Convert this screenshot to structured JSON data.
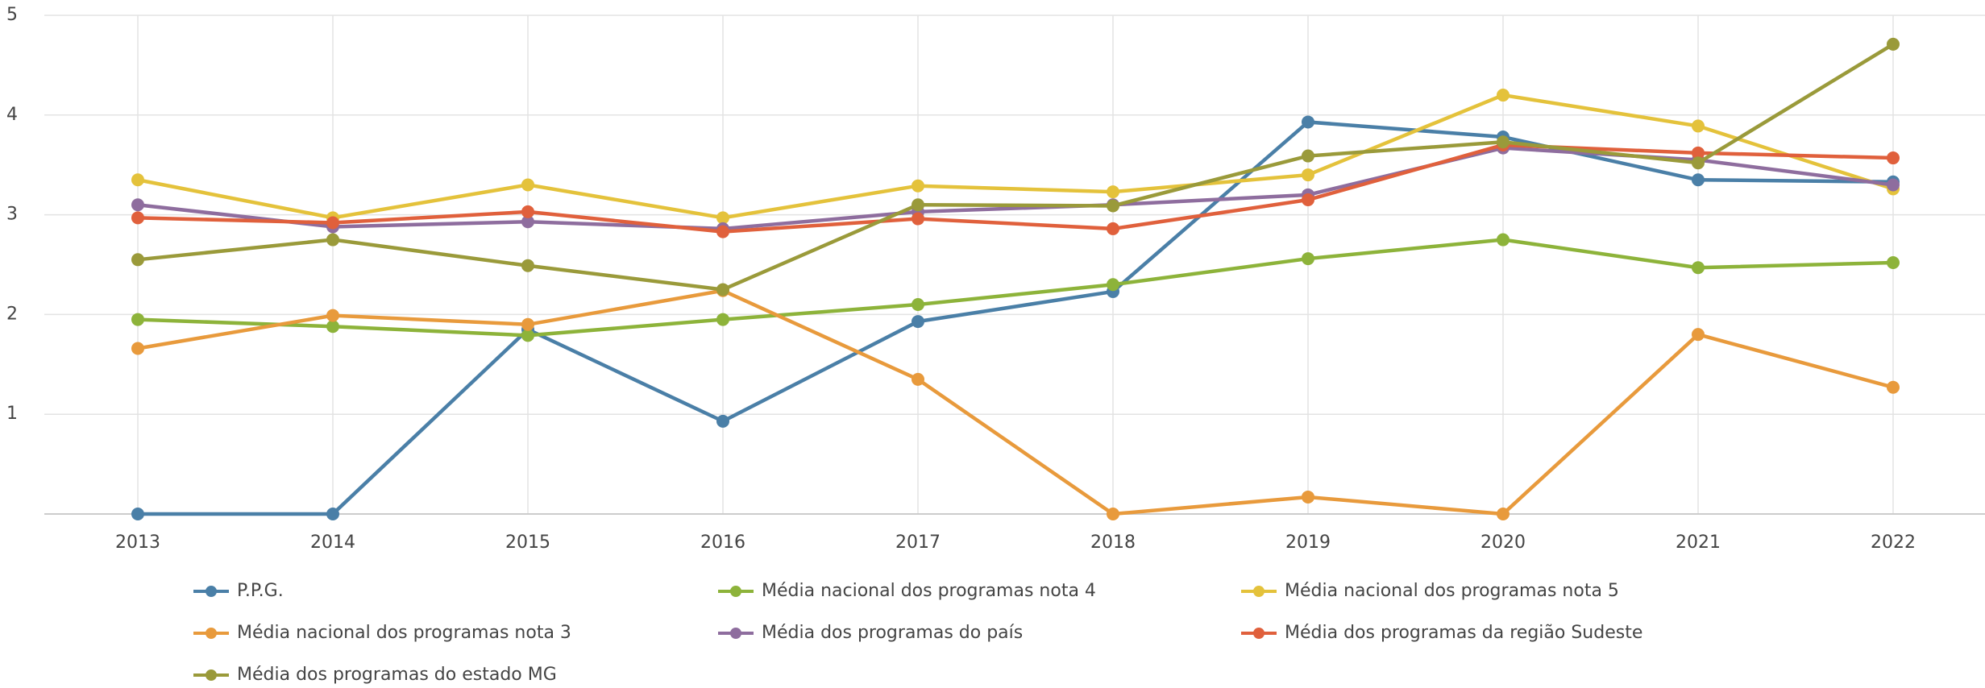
{
  "chart_data": {
    "type": "line",
    "categories": [
      "2013",
      "2014",
      "2015",
      "2016",
      "2017",
      "2018",
      "2019",
      "2020",
      "2021",
      "2022"
    ],
    "ylim": [
      0,
      5
    ],
    "yticks": [
      1,
      2,
      3,
      4,
      5
    ],
    "grid": true,
    "series": [
      {
        "name": "P.P.G.",
        "color": "#4a7fa7",
        "values": [
          0,
          0,
          1.85,
          0.93,
          1.93,
          2.23,
          3.93,
          3.78,
          3.35,
          3.33
        ]
      },
      {
        "name": "Média nacional dos programas nota 4",
        "color": "#8db33a",
        "values": [
          1.95,
          1.88,
          1.79,
          1.95,
          2.1,
          2.3,
          2.56,
          2.75,
          2.47,
          2.52
        ]
      },
      {
        "name": "Média nacional dos programas nota 5",
        "color": "#e4c23b",
        "values": [
          3.35,
          2.97,
          3.3,
          2.97,
          3.29,
          3.23,
          3.4,
          4.2,
          3.89,
          3.26
        ]
      },
      {
        "name": "Média nacional dos programas nota 3",
        "color": "#e89a3c",
        "values": [
          1.66,
          1.99,
          1.9,
          2.24,
          1.35,
          0,
          0.17,
          0,
          1.8,
          1.27
        ]
      },
      {
        "name": "Média dos programas do país",
        "color": "#8e6d9e",
        "values": [
          3.1,
          2.88,
          2.93,
          2.86,
          3.03,
          3.1,
          3.2,
          3.67,
          3.55,
          3.3
        ]
      },
      {
        "name": "Média dos programas da região Sudeste",
        "color": "#e0603c",
        "values": [
          2.97,
          2.92,
          3.03,
          2.83,
          2.96,
          2.86,
          3.15,
          3.7,
          3.62,
          3.57
        ]
      },
      {
        "name": "Média dos programas do estado MG",
        "color": "#9a9a3a",
        "values": [
          2.55,
          2.75,
          2.49,
          2.25,
          3.1,
          3.09,
          3.59,
          3.73,
          3.52,
          4.71
        ]
      }
    ]
  }
}
